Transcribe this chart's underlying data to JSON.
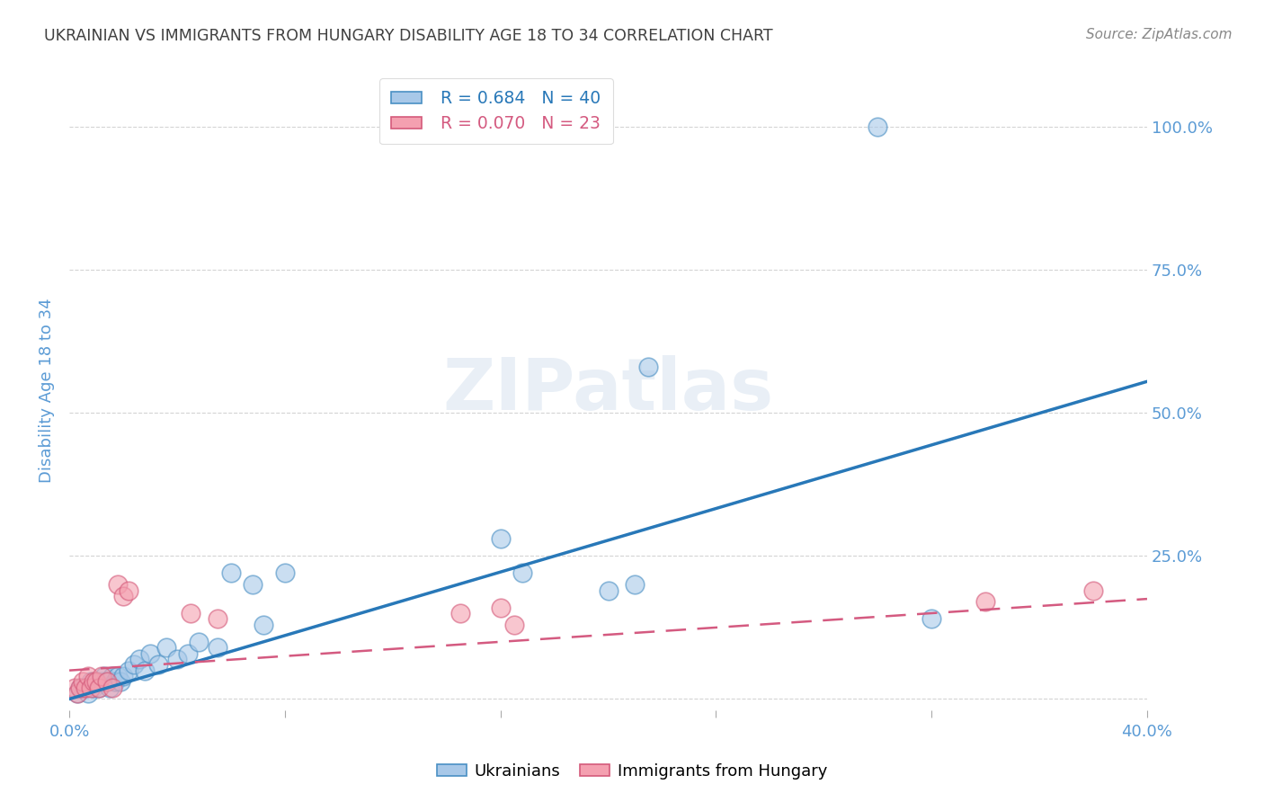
{
  "title": "UKRAINIAN VS IMMIGRANTS FROM HUNGARY DISABILITY AGE 18 TO 34 CORRELATION CHART",
  "source": "Source: ZipAtlas.com",
  "ylabel": "Disability Age 18 to 34",
  "xlim": [
    0.0,
    0.4
  ],
  "ylim": [
    -0.02,
    1.1
  ],
  "xticks": [
    0.0,
    0.08,
    0.16,
    0.24,
    0.32,
    0.4
  ],
  "xticklabels": [
    "0.0%",
    "",
    "",
    "",
    "",
    "40.0%"
  ],
  "yticks": [
    0.0,
    0.25,
    0.5,
    0.75,
    1.0
  ],
  "yticklabels_right": [
    "",
    "25.0%",
    "50.0%",
    "75.0%",
    "100.0%"
  ],
  "legend1_r": "0.684",
  "legend1_n": "40",
  "legend2_r": "0.070",
  "legend2_n": "23",
  "blue_color": "#a8c8e8",
  "pink_color": "#f4a0b0",
  "blue_edge_color": "#4a90c4",
  "pink_edge_color": "#d45a7a",
  "blue_line_color": "#2878b8",
  "pink_line_color": "#d45a80",
  "title_color": "#404040",
  "axis_label_color": "#5b9bd5",
  "tick_color": "#5b9bd5",
  "grid_color": "#d0d0d0",
  "watermark": "ZIPatlas",
  "ukrainians_x": [
    0.003,
    0.004,
    0.005,
    0.006,
    0.007,
    0.008,
    0.009,
    0.01,
    0.011,
    0.012,
    0.013,
    0.014,
    0.015,
    0.016,
    0.017,
    0.018,
    0.019,
    0.02,
    0.022,
    0.024,
    0.026,
    0.028,
    0.03,
    0.033,
    0.036,
    0.04,
    0.044,
    0.048,
    0.055,
    0.06,
    0.068,
    0.072,
    0.08,
    0.16,
    0.168,
    0.2,
    0.21,
    0.215,
    0.3,
    0.32
  ],
  "ukrainians_y": [
    0.01,
    0.02,
    0.02,
    0.02,
    0.01,
    0.03,
    0.02,
    0.03,
    0.02,
    0.03,
    0.04,
    0.03,
    0.02,
    0.04,
    0.03,
    0.04,
    0.03,
    0.04,
    0.05,
    0.06,
    0.07,
    0.05,
    0.08,
    0.06,
    0.09,
    0.07,
    0.08,
    0.1,
    0.09,
    0.22,
    0.2,
    0.13,
    0.22,
    0.28,
    0.22,
    0.19,
    0.2,
    0.58,
    1.0,
    0.14
  ],
  "hungary_x": [
    0.002,
    0.003,
    0.004,
    0.005,
    0.006,
    0.007,
    0.008,
    0.009,
    0.01,
    0.011,
    0.012,
    0.014,
    0.016,
    0.018,
    0.02,
    0.022,
    0.045,
    0.055,
    0.145,
    0.16,
    0.165,
    0.34,
    0.38
  ],
  "hungary_y": [
    0.02,
    0.01,
    0.02,
    0.03,
    0.02,
    0.04,
    0.02,
    0.03,
    0.03,
    0.02,
    0.04,
    0.03,
    0.02,
    0.2,
    0.18,
    0.19,
    0.15,
    0.14,
    0.15,
    0.16,
    0.13,
    0.17,
    0.19
  ],
  "blue_trendline_x": [
    0.0,
    0.4
  ],
  "blue_trendline_y": [
    0.0,
    0.555
  ],
  "pink_trendline_x": [
    0.0,
    0.4
  ],
  "pink_trendline_y": [
    0.05,
    0.175
  ]
}
